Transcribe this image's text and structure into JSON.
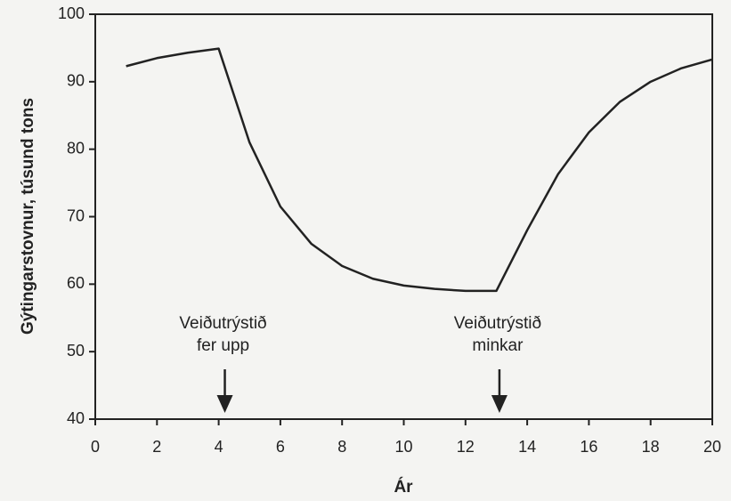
{
  "chart_data": {
    "type": "line",
    "x": [
      1,
      2,
      3,
      4,
      5,
      6,
      7,
      8,
      9,
      10,
      11,
      12,
      13,
      14,
      15,
      16,
      17,
      18,
      19,
      20
    ],
    "series": [
      {
        "name": "Gýtingarstovnur",
        "color": "#222222",
        "values": [
          92.3,
          93.5,
          94.3,
          94.9,
          81,
          71.5,
          66,
          62.7,
          60.8,
          59.8,
          59.3,
          59,
          59,
          68,
          76.3,
          82.5,
          87,
          90,
          92,
          93.3
        ]
      }
    ],
    "xlabel": "Ár",
    "ylabel": "Gýtingarstovnur, túsund tons",
    "xlim": [
      0,
      20
    ],
    "ylim": [
      40,
      100
    ],
    "xticks": [
      0,
      2,
      4,
      6,
      8,
      10,
      12,
      14,
      16,
      18,
      20
    ],
    "yticks": [
      40,
      50,
      60,
      70,
      80,
      90,
      100
    ],
    "grid": false,
    "annotations": [
      {
        "text": [
          "Veiðutrýstið",
          "fer upp"
        ],
        "x": 4.2
      },
      {
        "text": [
          "Veiðutrýstið",
          "minkar"
        ],
        "x": 13.1
      }
    ]
  }
}
